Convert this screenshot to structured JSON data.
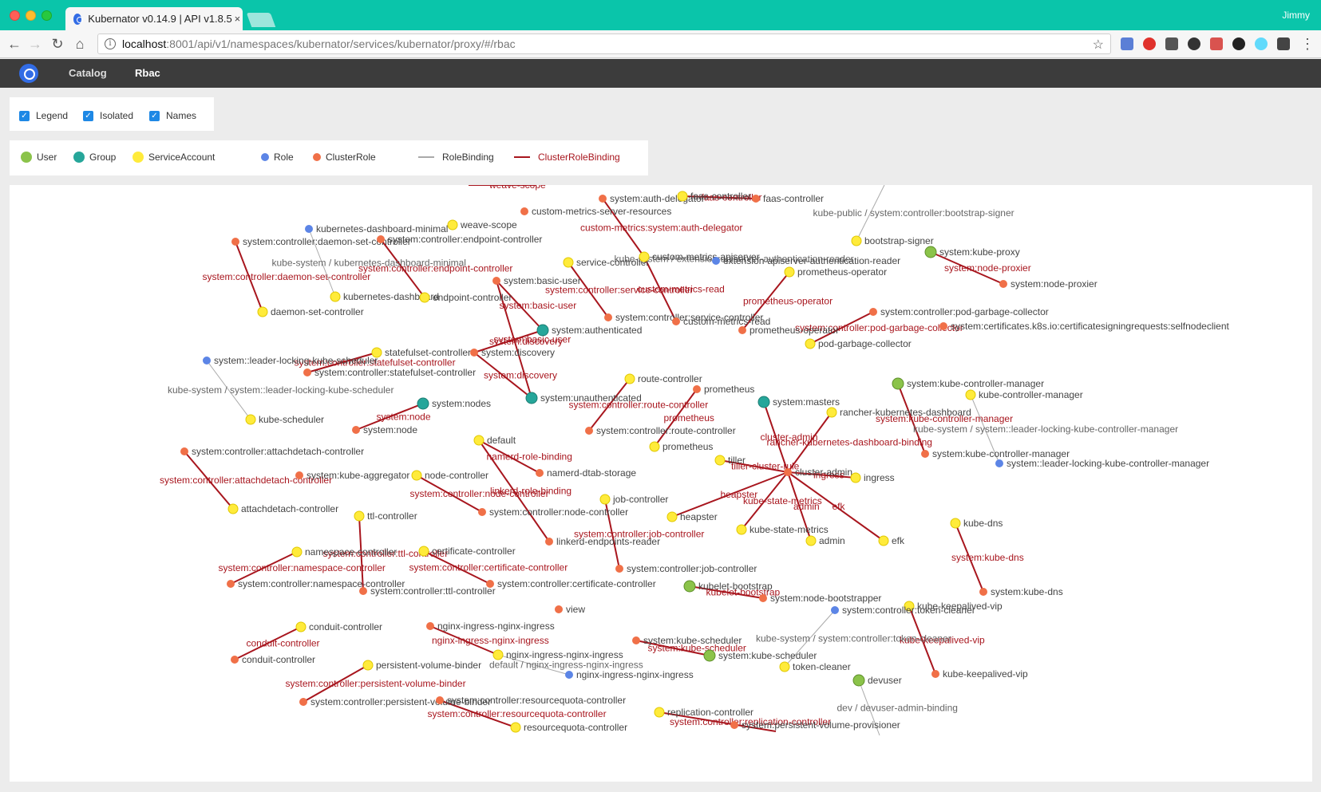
{
  "browser": {
    "tab_title": "Kubernator v0.14.9 | API v1.8.5",
    "tab_close": "×",
    "profile_name": "Jimmy",
    "url_host": "localhost",
    "url_path": ":8001/api/v1/namespaces/kubernator/services/kubernator/proxy/#/rbac",
    "info_glyph": "i",
    "star_glyph": "☆",
    "back_glyph": "←",
    "forward_glyph": "→",
    "reload_glyph": "↻",
    "home_glyph": "⌂",
    "menu_glyph": "⋮"
  },
  "appnav": {
    "items": [
      {
        "label": "Catalog",
        "active": false
      },
      {
        "label": "Rbac",
        "active": true
      }
    ]
  },
  "options": {
    "checkboxes": [
      {
        "label": "Legend",
        "checked": true
      },
      {
        "label": "Isolated",
        "checked": true
      },
      {
        "label": "Names",
        "checked": true
      }
    ]
  },
  "legend": {
    "items": [
      {
        "label": "User",
        "kind": "node",
        "color": "#8bc34a"
      },
      {
        "label": "Group",
        "kind": "node",
        "color": "#26a69a"
      },
      {
        "label": "ServiceAccount",
        "kind": "node",
        "color": "#ffeb3b"
      },
      {
        "label": "Role",
        "kind": "node-small",
        "color": "#5c85e6"
      },
      {
        "label": "ClusterRole",
        "kind": "node-small",
        "color": "#f07048"
      },
      {
        "label": "RoleBinding",
        "kind": "line",
        "color": "#aaaaaa"
      },
      {
        "label": "ClusterRoleBinding",
        "kind": "line",
        "color": "#a8161e"
      }
    ]
  },
  "colors": {
    "user": "#8bc34a",
    "group": "#26a69a",
    "sa": "#ffeb3b",
    "role": "#5c85e6",
    "clusterrole": "#f07048",
    "rolebinding": "#aaaaaa",
    "clusterrolebinding": "#a8161e",
    "chrome_accent": "#0ac5aa"
  },
  "graph": {
    "nodes": [
      {
        "id": "n1",
        "type": "sa",
        "label": "weave-scope"
      },
      {
        "id": "n2",
        "type": "clusterrole",
        "label": "custom-metrics-server-resources"
      },
      {
        "id": "n3",
        "type": "clusterrole",
        "label": "system:auth-delegator"
      },
      {
        "id": "n4",
        "type": "sa",
        "label": "faas-controller"
      },
      {
        "id": "n5",
        "type": "clusterrole",
        "label": "faas-controller"
      },
      {
        "id": "n6",
        "type": "role",
        "label": "kubernetes-dashboard-minimal"
      },
      {
        "id": "n7",
        "type": "clusterrole",
        "label": "system:controller:daemon-set-controller"
      },
      {
        "id": "n8",
        "type": "clusterrole",
        "label": "system:controller:endpoint-controller"
      },
      {
        "id": "n9",
        "type": "sa",
        "label": "service-controller"
      },
      {
        "id": "n10",
        "type": "sa",
        "label": "custom-metrics-apiserver"
      },
      {
        "id": "n11",
        "type": "role",
        "label": "extension-apiserver-authentication-reader"
      },
      {
        "id": "n12",
        "type": "sa",
        "label": "prometheus-operator"
      },
      {
        "id": "n13",
        "type": "sa",
        "label": "bootstrap-signer"
      },
      {
        "id": "n14",
        "type": "user",
        "label": "system:kube-proxy"
      },
      {
        "id": "n15",
        "type": "clusterrole",
        "label": "system:node-proxier"
      },
      {
        "id": "n16",
        "type": "sa",
        "label": "kubernetes-dashboard"
      },
      {
        "id": "n17",
        "type": "sa",
        "label": "endpoint-controller"
      },
      {
        "id": "n18",
        "type": "clusterrole",
        "label": "system:basic-user"
      },
      {
        "id": "n19",
        "type": "sa",
        "label": "daemon-set-controller"
      },
      {
        "id": "n20",
        "type": "clusterrole",
        "label": "system:controller:service-controller"
      },
      {
        "id": "n21",
        "type": "clusterrole",
        "label": "custom-metrics-read"
      },
      {
        "id": "n22",
        "type": "clusterrole",
        "label": "prometheus-operator"
      },
      {
        "id": "n23",
        "type": "clusterrole",
        "label": "system:controller:pod-garbage-collector"
      },
      {
        "id": "n24",
        "type": "clusterrole",
        "label": "system:certificates.k8s.io:certificatesigningrequests:selfnodeclient"
      },
      {
        "id": "n25",
        "type": "sa",
        "label": "pod-garbage-collector"
      },
      {
        "id": "n26",
        "type": "group",
        "label": "system:authenticated"
      },
      {
        "id": "n27",
        "type": "sa",
        "label": "statefulset-controller"
      },
      {
        "id": "n28",
        "type": "clusterrole",
        "label": "system:discovery"
      },
      {
        "id": "n29",
        "type": "role",
        "label": "system::leader-locking-kube-scheduler"
      },
      {
        "id": "n30",
        "type": "clusterrole",
        "label": "system:controller:statefulset-controller"
      },
      {
        "id": "n31",
        "type": "sa",
        "label": "route-controller"
      },
      {
        "id": "n32",
        "type": "clusterrole",
        "label": "prometheus"
      },
      {
        "id": "n33",
        "type": "group",
        "label": "system:unauthenticated"
      },
      {
        "id": "n34",
        "type": "group",
        "label": "system:masters"
      },
      {
        "id": "n35",
        "type": "group",
        "label": "system:nodes"
      },
      {
        "id": "n36",
        "type": "sa",
        "label": "kube-scheduler"
      },
      {
        "id": "n37",
        "type": "clusterrole",
        "label": "system:node"
      },
      {
        "id": "n38",
        "type": "clusterrole",
        "label": "system:controller:route-controller"
      },
      {
        "id": "n39",
        "type": "sa",
        "label": "rancher-kubernetes-dashboard"
      },
      {
        "id": "n40",
        "type": "user",
        "label": "system:kube-controller-manager"
      },
      {
        "id": "n41",
        "type": "sa",
        "label": "kube-controller-manager"
      },
      {
        "id": "n42",
        "type": "clusterrole",
        "label": "system:kube-controller-manager"
      },
      {
        "id": "n43",
        "type": "role",
        "label": "system::leader-locking-kube-controller-manager"
      },
      {
        "id": "n44",
        "type": "sa",
        "label": "default"
      },
      {
        "id": "n45",
        "type": "sa",
        "label": "prometheus"
      },
      {
        "id": "n46",
        "type": "clusterrole",
        "label": "system:controller:attachdetach-controller"
      },
      {
        "id": "n47",
        "type": "clusterrole",
        "label": "namerd-dtab-storage"
      },
      {
        "id": "n48",
        "type": "sa",
        "label": "tiller"
      },
      {
        "id": "n49",
        "type": "clusterrole",
        "label": "cluster-admin"
      },
      {
        "id": "n50",
        "type": "sa",
        "label": "ingress"
      },
      {
        "id": "n51",
        "type": "clusterrole",
        "label": "system:kube-aggregator"
      },
      {
        "id": "n52",
        "type": "sa",
        "label": "node-controller"
      },
      {
        "id": "n53",
        "type": "sa",
        "label": "attachdetach-controller"
      },
      {
        "id": "n54",
        "type": "sa",
        "label": "job-controller"
      },
      {
        "id": "n55",
        "type": "clusterrole",
        "label": "system:controller:node-controller"
      },
      {
        "id": "n56",
        "type": "sa",
        "label": "ttl-controller"
      },
      {
        "id": "n57",
        "type": "sa",
        "label": "heapster"
      },
      {
        "id": "n58",
        "type": "sa",
        "label": "kube-state-metrics"
      },
      {
        "id": "n59",
        "type": "sa",
        "label": "admin"
      },
      {
        "id": "n60",
        "type": "sa",
        "label": "efk"
      },
      {
        "id": "n61",
        "type": "sa",
        "label": "kube-dns"
      },
      {
        "id": "n62",
        "type": "clusterrole",
        "label": "linkerd-endpoints-reader"
      },
      {
        "id": "n63",
        "type": "sa",
        "label": "namespace-controller"
      },
      {
        "id": "n64",
        "type": "sa",
        "label": "certificate-controller"
      },
      {
        "id": "n65",
        "type": "clusterrole",
        "label": "system:controller:job-controller"
      },
      {
        "id": "n66",
        "type": "clusterrole",
        "label": "system:kube-dns"
      },
      {
        "id": "n67",
        "type": "clusterrole",
        "label": "system:controller:namespace-controller"
      },
      {
        "id": "n68",
        "type": "clusterrole",
        "label": "system:controller:ttl-controller"
      },
      {
        "id": "n69",
        "type": "clusterrole",
        "label": "system:controller:certificate-controller"
      },
      {
        "id": "n70",
        "type": "user",
        "label": "kubelet-bootstrap"
      },
      {
        "id": "n71",
        "type": "clusterrole",
        "label": "system:node-bootstrapper"
      },
      {
        "id": "n72",
        "type": "sa",
        "label": "kube-keepalived-vip"
      },
      {
        "id": "n73",
        "type": "role",
        "label": "system:controller:token-cleaner"
      },
      {
        "id": "n74",
        "type": "clusterrole",
        "label": "view"
      },
      {
        "id": "n75",
        "type": "sa",
        "label": "conduit-controller"
      },
      {
        "id": "n76",
        "type": "clusterrole",
        "label": "nginx-ingress-nginx-ingress"
      },
      {
        "id": "n77",
        "type": "clusterrole",
        "label": "system:kube-scheduler"
      },
      {
        "id": "n78",
        "type": "sa",
        "label": "nginx-ingress-nginx-ingress"
      },
      {
        "id": "n79",
        "type": "user",
        "label": "system:kube-scheduler"
      },
      {
        "id": "n80",
        "type": "sa",
        "label": "token-cleaner"
      },
      {
        "id": "n81",
        "type": "clusterrole",
        "label": "kube-keepalived-vip"
      },
      {
        "id": "n82",
        "type": "clusterrole",
        "label": "conduit-controller"
      },
      {
        "id": "n83",
        "type": "sa",
        "label": "persistent-volume-binder"
      },
      {
        "id": "n84",
        "type": "role",
        "label": "nginx-ingress-nginx-ingress"
      },
      {
        "id": "n85",
        "type": "user",
        "label": "devuser"
      },
      {
        "id": "n86",
        "type": "clusterrole",
        "label": "system:controller:persistent-volume-binder"
      },
      {
        "id": "n87",
        "type": "clusterrole",
        "label": "system:controller:resourcequota-controller"
      },
      {
        "id": "n88",
        "type": "sa",
        "label": "replication-controller"
      },
      {
        "id": "n89",
        "type": "sa",
        "label": "resourcequota-controller"
      },
      {
        "id": "n90",
        "type": "clusterrole",
        "label": "system:persistent-volume-provisioner"
      }
    ],
    "edges": [
      {
        "from": "n7",
        "to": "n19",
        "type": "crb",
        "label": "system:controller:daemon-set-controller"
      },
      {
        "from": "n8",
        "to": "n17",
        "type": "crb",
        "label": "system:controller:endpoint-controller"
      },
      {
        "from": "n6",
        "to": "n16",
        "type": "rb",
        "label": "kube-system / kubernetes-dashboard-minimal"
      },
      {
        "from": "n3",
        "to": "n10",
        "type": "crb",
        "label": "custom-metrics:system:auth-delegator"
      },
      {
        "from": "n4",
        "to": "n5",
        "type": "crb",
        "label": "faas-controller"
      },
      {
        "from": "n10",
        "to": "n11",
        "type": "rb",
        "label": "kube-system / extension-apiserver-authentication-reader"
      },
      {
        "from": "n10",
        "to": "n21",
        "type": "crb",
        "label": "custom-metrics-read"
      },
      {
        "from": "n9",
        "to": "n20",
        "type": "crb",
        "label": "system:controller:service-controller"
      },
      {
        "from": "n12",
        "to": "n22",
        "type": "crb",
        "label": "prometheus-operator"
      },
      {
        "from": "n14",
        "to": "n15",
        "type": "crb",
        "label": "system:node-proxier"
      },
      {
        "from": "n13",
        "to": "n13b",
        "type": "rb",
        "label": "kube-public / system:controller:bootstrap-signer"
      },
      {
        "from": "n26",
        "to": "n18",
        "type": "crb",
        "label": "system:basic-user"
      },
      {
        "from": "n26",
        "to": "n28",
        "type": "crb",
        "label": "system:discovery"
      },
      {
        "from": "n33",
        "to": "n28",
        "type": "crb",
        "label": "system:discovery"
      },
      {
        "from": "n33",
        "to": "n18",
        "type": "crb",
        "label": "system:basic-user"
      },
      {
        "from": "n27",
        "to": "n30",
        "type": "crb",
        "label": "system:controller:statefulset-controller"
      },
      {
        "from": "n29",
        "to": "n36",
        "type": "rb",
        "label": "kube-system / system::leader-locking-kube-scheduler"
      },
      {
        "from": "n25",
        "to": "n23",
        "type": "crb",
        "label": "system:controller:pod-garbage-collector"
      },
      {
        "from": "n35",
        "to": "n37",
        "type": "crb",
        "label": "system:node"
      },
      {
        "from": "n31",
        "to": "n38",
        "type": "crb",
        "label": "system:controller:route-controller"
      },
      {
        "from": "n45",
        "to": "n32",
        "type": "crb",
        "label": "prometheus"
      },
      {
        "from": "n34",
        "to": "n49",
        "type": "crb",
        "label": "cluster-admin"
      },
      {
        "from": "n39",
        "to": "n49",
        "type": "crb",
        "label": "rancher-kubernetes-dashboard-binding"
      },
      {
        "from": "n40",
        "to": "n42",
        "type": "crb",
        "label": "system:kube-controller-manager"
      },
      {
        "from": "n41",
        "to": "n43",
        "type": "rb",
        "label": "kube-system / system::leader-locking-kube-controller-manager"
      },
      {
        "from": "n44",
        "to": "n47",
        "type": "crb",
        "label": "namerd-role-binding"
      },
      {
        "from": "n44",
        "to": "n62",
        "type": "crb",
        "label": "linkerd-role-binding"
      },
      {
        "from": "n46",
        "to": "n53",
        "type": "crb",
        "label": "system:controller:attachdetach-controller"
      },
      {
        "from": "n48",
        "to": "n49",
        "type": "crb",
        "label": "tiller-cluster-rule"
      },
      {
        "from": "n50",
        "to": "n49",
        "type": "crb",
        "label": "ingress"
      },
      {
        "from": "n57",
        "to": "n49",
        "type": "crb",
        "label": "heapster"
      },
      {
        "from": "n58",
        "to": "n49",
        "type": "crb",
        "label": "kube-state-metrics"
      },
      {
        "from": "n59",
        "to": "n49",
        "type": "crb",
        "label": "admin"
      },
      {
        "from": "n60",
        "to": "n49",
        "type": "crb",
        "label": "efk"
      },
      {
        "from": "n52",
        "to": "n55",
        "type": "crb",
        "label": "system:controller:node-controller"
      },
      {
        "from": "n54",
        "to": "n65",
        "type": "crb",
        "label": "system:controller:job-controller"
      },
      {
        "from": "n56",
        "to": "n68",
        "type": "crb",
        "label": "system:controller:ttl-controller"
      },
      {
        "from": "n63",
        "to": "n67",
        "type": "crb",
        "label": "system:controller:namespace-controller"
      },
      {
        "from": "n64",
        "to": "n69",
        "type": "crb",
        "label": "system:controller:certificate-controller"
      },
      {
        "from": "n61",
        "to": "n66",
        "type": "crb",
        "label": "system:kube-dns"
      },
      {
        "from": "n70",
        "to": "n71",
        "type": "crb",
        "label": "kubelet-bootstrap"
      },
      {
        "from": "n72",
        "to": "n81",
        "type": "crb",
        "label": "kube-keepalived-vip"
      },
      {
        "from": "n73",
        "to": "n80",
        "type": "rb",
        "label": "kube-system / system:controller:token-cleaner"
      },
      {
        "from": "n75",
        "to": "n82",
        "type": "crb",
        "label": "conduit-controller"
      },
      {
        "from": "n76",
        "to": "n78",
        "type": "crb",
        "label": "nginx-ingress-nginx-ingress"
      },
      {
        "from": "n78",
        "to": "n84",
        "type": "rb",
        "label": "default / nginx-ingress-nginx-ingress"
      },
      {
        "from": "n77",
        "to": "n79",
        "type": "crb",
        "label": "system:kube-scheduler"
      },
      {
        "from": "n83",
        "to": "n86",
        "type": "crb",
        "label": "system:controller:persistent-volume-binder"
      },
      {
        "from": "n89",
        "to": "n87",
        "type": "crb",
        "label": "system:controller:resourcequota-controller"
      },
      {
        "from": "n85",
        "to": "n85b",
        "type": "rb",
        "label": "dev / devuser-admin-binding"
      },
      {
        "from": "n88",
        "to": "n88b",
        "type": "crb",
        "label": "system:controller:replication-controller"
      },
      {
        "from": "n1a",
        "to": "n1b",
        "type": "crb",
        "label": "weave-scope"
      }
    ]
  }
}
